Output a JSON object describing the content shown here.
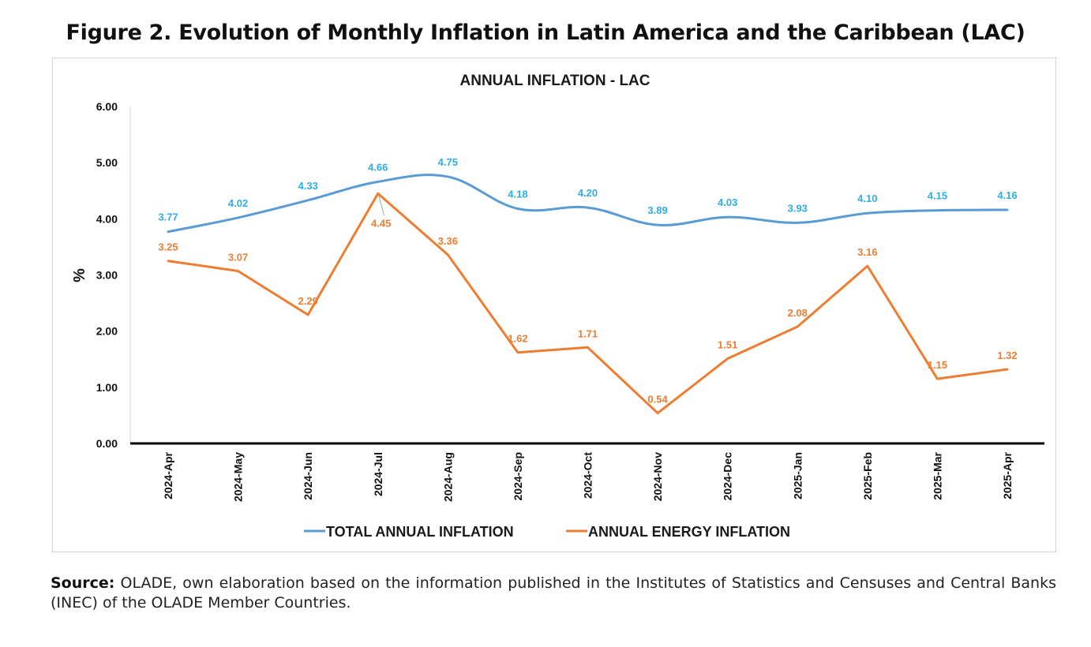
{
  "figure_title": "Figure 2. Evolution of Monthly Inflation in Latin America and the Caribbean (LAC)",
  "source_label": "Source:",
  "source_text": "OLADE, own elaboration based on the information published in the Institutes of Statistics and Censuses and Central Banks (INEC) of the OLADE Member Countries.",
  "colors": {
    "total": "#5b9bd5",
    "energy": "#ed7d31",
    "total_label": "#2eaee8",
    "energy_label": "#ed7d31",
    "axis": "#000000"
  },
  "chart_data": {
    "type": "line",
    "title": "ANNUAL INFLATION  - LAC",
    "xlabel": "",
    "ylabel": "%",
    "ylim": [
      0,
      6
    ],
    "yticks": [
      "0.00",
      "1.00",
      "2.00",
      "3.00",
      "4.00",
      "5.00",
      "6.00"
    ],
    "grid": false,
    "legend_position": "bottom",
    "categories": [
      "2024-Apr",
      "2024-May",
      "2024-Jun",
      "2024-Jul",
      "2024-Aug",
      "2024-Sep",
      "2024-Oct",
      "2024-Nov",
      "2024-Dec",
      "2025-Jan",
      "2025-Feb",
      "2025-Mar",
      "2025-Apr"
    ],
    "series": [
      {
        "name": "TOTAL ANNUAL INFLATION",
        "values": [
          3.77,
          4.02,
          4.33,
          4.66,
          4.75,
          4.18,
          4.2,
          3.89,
          4.03,
          3.93,
          4.1,
          4.15,
          4.16
        ],
        "labels": [
          "3.77",
          "4.02",
          "4.33",
          "4.66",
          "4.75",
          "4.18",
          "4.20",
          "3.89",
          "4.03",
          "3.93",
          "4.10",
          "4.15",
          "4.16"
        ]
      },
      {
        "name": "ANNUAL ENERGY INFLATION",
        "values": [
          3.25,
          3.07,
          2.29,
          4.45,
          3.36,
          1.62,
          1.71,
          0.54,
          1.51,
          2.08,
          3.16,
          1.15,
          1.32
        ],
        "labels": [
          "3.25",
          "3.07",
          "2.29",
          "4.45",
          "3.36",
          "1.62",
          "1.71",
          "0.54",
          "1.51",
          "2.08",
          "3.16",
          "1.15",
          "1.32"
        ]
      }
    ]
  }
}
